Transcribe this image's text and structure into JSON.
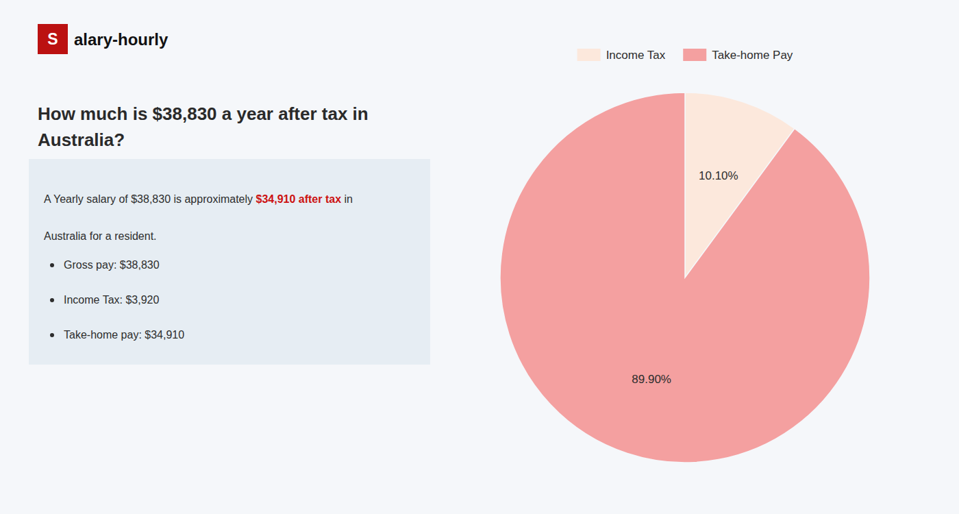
{
  "chart_data": {
    "type": "pie",
    "title": "How much is $38,830 a year after tax in\nAustralia?",
    "categories": [
      "Income Tax",
      "Take-home Pay"
    ],
    "values": [
      10.1,
      89.9
    ],
    "value_labels": [
      "10.10%",
      "89.90%"
    ],
    "data_labels": true,
    "colors": [
      "#fce8dc",
      "#f4a0a0"
    ],
    "legend": "top",
    "annotations": [
      {
        "text": "S",
        "color": "#ffffff"
      },
      {
        "text": "alary-hourly",
        "color": "#111111"
      },
      {
        "text": "A Yearly salary of $38,830 is approximately ",
        "color": "#2d2d2d"
      },
      {
        "text": "$34,910 after tax",
        "color": "#cc1111"
      },
      {
        "text": " in",
        "color": "#2d2d2d"
      },
      {
        "text": "Australia for a resident.",
        "color": "#2d2d2d"
      },
      {
        "text": "Gross pay: $38,830",
        "color": "#2d2d2d"
      },
      {
        "text": "Income Tax: $3,920",
        "color": "#2d2d2d"
      },
      {
        "text": "Take-home pay: $34,910",
        "color": "#2d2d2d"
      }
    ]
  }
}
